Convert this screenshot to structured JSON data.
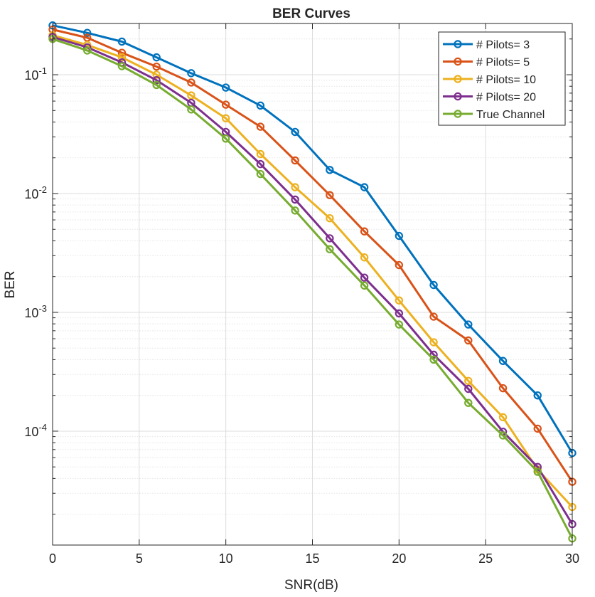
{
  "chart_data": {
    "type": "line",
    "title": "BER Curves",
    "xlabel": "SNR(dB)",
    "ylabel": "BER",
    "xlim": [
      0,
      30
    ],
    "ylim": [
      1.1e-05,
      0.27
    ],
    "yscale": "log",
    "grid": true,
    "minor_grid": true,
    "legend_position": "top-right",
    "x_ticks": [
      0,
      5,
      10,
      15,
      20,
      25,
      30
    ],
    "x_tick_labels": [
      "0",
      "5",
      "10",
      "15",
      "20",
      "25",
      "30"
    ],
    "y_ticks": [
      {
        "value": 0.1,
        "base": "10",
        "exp": "-1"
      },
      {
        "value": 0.01,
        "base": "10",
        "exp": "-2"
      },
      {
        "value": 0.001,
        "base": "10",
        "exp": "-3"
      },
      {
        "value": 0.0001,
        "base": "10",
        "exp": "-4"
      }
    ],
    "x": [
      0,
      2,
      4,
      6,
      8,
      10,
      12,
      14,
      16,
      18,
      20,
      22,
      24,
      26,
      28,
      30
    ],
    "series": [
      {
        "name": "# Pilots= 3",
        "color": "#0072BD",
        "values": [
          0.26,
          0.225,
          0.19,
          0.14,
          0.103,
          0.078,
          0.055,
          0.033,
          0.0158,
          0.0113,
          0.0044,
          0.0017,
          0.00079,
          0.00039,
          0.0002,
          6.55e-05
        ]
      },
      {
        "name": "# Pilots= 5",
        "color": "#D95319",
        "values": [
          0.24,
          0.205,
          0.153,
          0.117,
          0.086,
          0.056,
          0.0365,
          0.019,
          0.0097,
          0.0048,
          0.0025,
          0.00092,
          0.00058,
          0.00023,
          0.000105,
          3.75e-05
        ]
      },
      {
        "name": "# Pilots= 10",
        "color": "#EDB120",
        "values": [
          0.215,
          0.178,
          0.14,
          0.1,
          0.067,
          0.043,
          0.0215,
          0.0113,
          0.0062,
          0.0029,
          0.00126,
          0.00056,
          0.000265,
          0.000131,
          4.75e-05,
          2.3e-05
        ]
      },
      {
        "name": "# Pilots= 20",
        "color": "#7E2F8E",
        "values": [
          0.208,
          0.17,
          0.127,
          0.09,
          0.058,
          0.033,
          0.0177,
          0.0089,
          0.0042,
          0.00196,
          0.00098,
          0.00044,
          0.000227,
          9.9e-05,
          5e-05,
          1.65e-05
        ]
      },
      {
        "name": "True Channel",
        "color": "#77AC30",
        "values": [
          0.2,
          0.16,
          0.118,
          0.082,
          0.051,
          0.029,
          0.0146,
          0.0072,
          0.0034,
          0.00168,
          0.00079,
          0.0004,
          0.000173,
          9.2e-05,
          4.55e-05,
          1.25e-05
        ]
      }
    ]
  }
}
